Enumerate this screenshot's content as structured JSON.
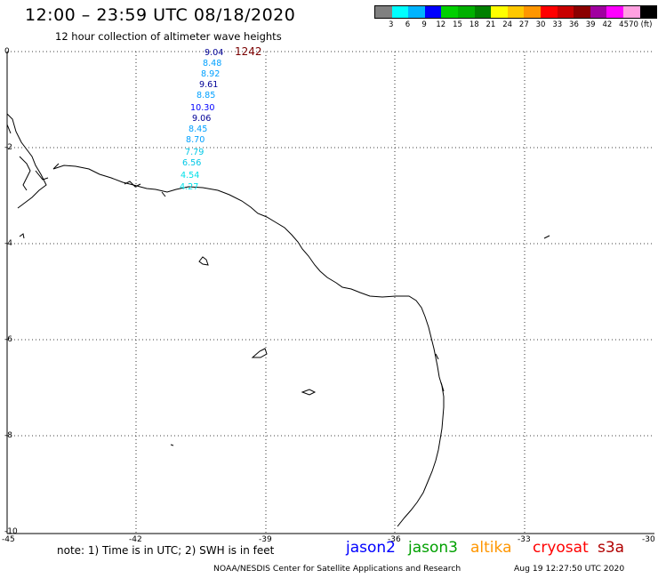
{
  "header": {
    "title": "12:00 – 23:59 UTC 08/18/2020",
    "subtitle": "12 hour collection of altimeter wave heights"
  },
  "legend": {
    "colors": [
      "#808080",
      "#00ffff",
      "#00b4ff",
      "#0000ff",
      "#00d000",
      "#00b000",
      "#008000",
      "#ffff00",
      "#ffc800",
      "#ff9600",
      "#ff0000",
      "#c80000",
      "#8b0000",
      "#a000a0",
      "#ff00ff",
      "#ffa0e0",
      "#000000"
    ],
    "ticks": [
      "3",
      "6",
      "9",
      "12",
      "15",
      "18",
      "21",
      "24",
      "27",
      "30",
      "33",
      "36",
      "39",
      "42",
      "45",
      "70 (ft)"
    ]
  },
  "map": {
    "lat_labels": [
      "0",
      "-2",
      "-4",
      "-6",
      "-8",
      "-10"
    ],
    "lon_labels": [
      "-45",
      "-42",
      "-39",
      "-36",
      "-33",
      "-30"
    ],
    "cycle_label": "1242",
    "wave_heights": [
      {
        "value": "9.04",
        "color": "#000096"
      },
      {
        "value": "8.48",
        "color": "#00a0ff"
      },
      {
        "value": "8.92",
        "color": "#00a0ff"
      },
      {
        "value": "9.61",
        "color": "#000096"
      },
      {
        "value": "8.85",
        "color": "#00a0ff"
      },
      {
        "value": "10.30",
        "color": "#0000ff"
      },
      {
        "value": "9.06",
        "color": "#000096"
      },
      {
        "value": "8.45",
        "color": "#00a0ff"
      },
      {
        "value": "8.70",
        "color": "#00a0ff"
      },
      {
        "value": "7.79",
        "color": "#00c8e6"
      },
      {
        "value": "6.56",
        "color": "#00c8e6"
      },
      {
        "value": "4.54",
        "color": "#00e0e8"
      },
      {
        "value": "4.27",
        "color": "#00e0e8"
      }
    ]
  },
  "footer": {
    "note": "note: 1) Time is in UTC; 2) SWH is in feet",
    "satellites": [
      {
        "name": "jason2",
        "color": "#0000ff"
      },
      {
        "name": "jason3",
        "color": "#00a000"
      },
      {
        "name": "altika",
        "color": "#ff9600"
      },
      {
        "name": "cryosat",
        "color": "#ff0000"
      },
      {
        "name": "s3a",
        "color": "#b00000"
      }
    ],
    "credit": "NOAA/NESDIS Center for Satellite Applications and Research",
    "timestamp": "Aug 19 12:27:50 UTC 2020"
  }
}
